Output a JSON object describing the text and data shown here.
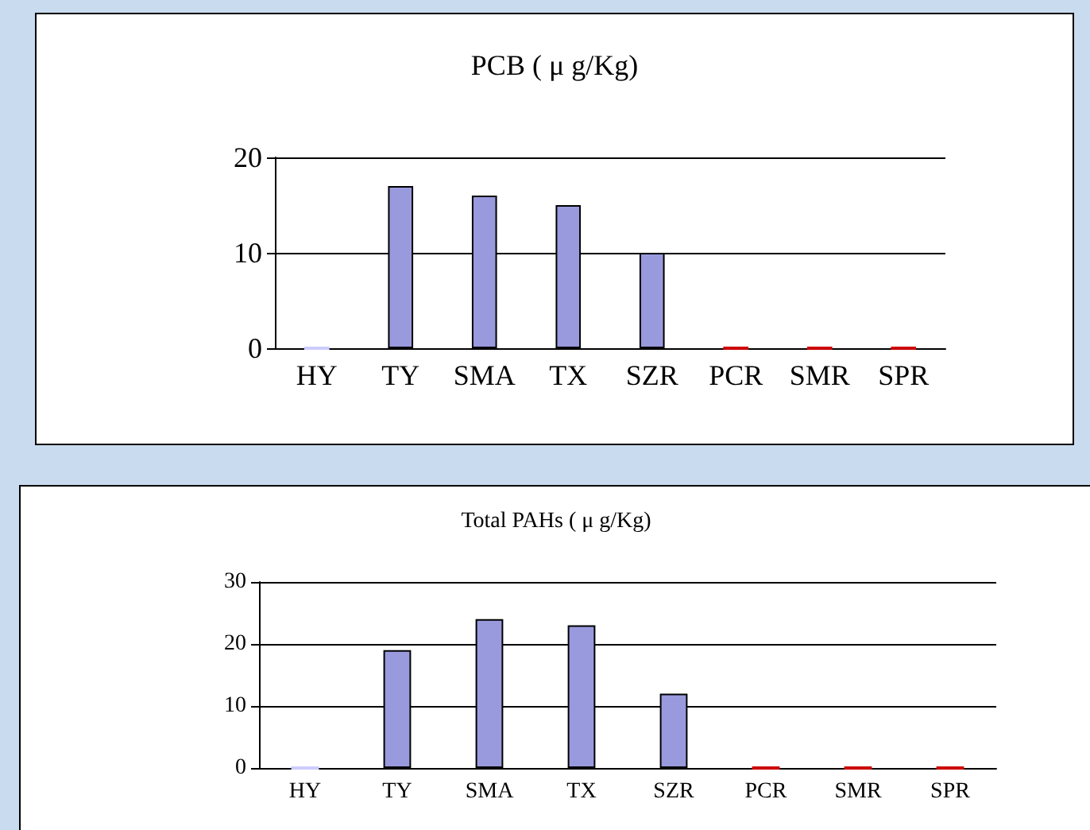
{
  "chart_data": [
    {
      "type": "bar",
      "title": "PCB ( μ g/Kg)",
      "categories": [
        "HY",
        "TY",
        "SMA",
        "TX",
        "SZR",
        "PCR",
        "SMR",
        "SPR"
      ],
      "values": [
        0,
        17,
        16,
        15,
        10,
        0,
        0,
        0
      ],
      "colors": [
        "#ccccff",
        "#9999dd",
        "#9999dd",
        "#9999dd",
        "#9999dd",
        "#cc0000",
        "#cc0000",
        "#cc0000"
      ],
      "ylim": [
        0,
        20
      ],
      "yticks": [
        0,
        10,
        20
      ],
      "grid": "y"
    },
    {
      "type": "bar",
      "title": "Total PAHs ( μ g/Kg)",
      "categories": [
        "HY",
        "TY",
        "SMA",
        "TX",
        "SZR",
        "PCR",
        "SMR",
        "SPR"
      ],
      "values": [
        0,
        19,
        24,
        23,
        12,
        0,
        0,
        0
      ],
      "colors": [
        "#ccccff",
        "#9999dd",
        "#9999dd",
        "#9999dd",
        "#9999dd",
        "#cc0000",
        "#cc0000",
        "#cc0000"
      ],
      "ylim": [
        0,
        30
      ],
      "yticks": [
        0,
        10,
        20,
        30
      ],
      "grid": "y"
    }
  ]
}
